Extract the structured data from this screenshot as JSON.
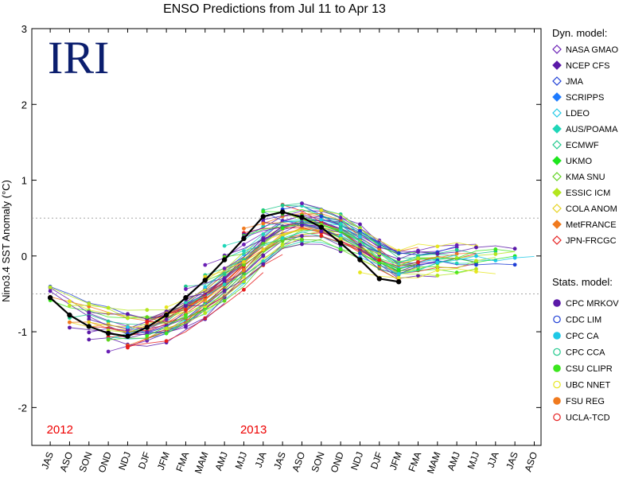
{
  "chart_data": {
    "type": "line",
    "title": "ENSO Predictions from Jul 11 to Apr 13",
    "logo_text": "IRI",
    "ylabel": "Nino3.4 SST Anomaly (°C)",
    "ylim": [
      -2.5,
      3
    ],
    "yticks": [
      -2,
      -1,
      0,
      1,
      2,
      3
    ],
    "reference_lines": [
      0.5,
      -0.5
    ],
    "x": [
      "JAS",
      "ASO",
      "SON",
      "OND",
      "NDJ",
      "DJF",
      "JFM",
      "FMA",
      "MAM",
      "AMJ",
      "MJJ",
      "JJA",
      "JAS",
      "ASO",
      "SON",
      "OND",
      "NDJ",
      "DJF",
      "JFM",
      "FMA",
      "MAM",
      "AMJ",
      "MJJ",
      "JJA",
      "JAS",
      "ASO"
    ],
    "year_labels": [
      {
        "text": "2012",
        "at": "JAS"
      },
      {
        "text": "2013",
        "at": "MJJ"
      }
    ],
    "observed": {
      "values": [
        -0.55,
        -0.78,
        -0.93,
        -1.02,
        -1.06,
        -0.94,
        -0.78,
        -0.55,
        -0.32,
        -0.05,
        0.23,
        0.52,
        0.58,
        0.51,
        0.38,
        0.17,
        -0.05,
        -0.3,
        -0.34
      ]
    },
    "legend": {
      "dynamical_header": "Dyn. model:",
      "statistical_header": "Stats. model:",
      "dynamical": [
        {
          "name": "NASA GMAO",
          "color": "#6a1fb5",
          "marker": "diamond-open"
        },
        {
          "name": "NCEP CFS",
          "color": "#5b19a8",
          "marker": "diamond-filled"
        },
        {
          "name": "JMA",
          "color": "#1f3fd6",
          "marker": "diamond-open"
        },
        {
          "name": "SCRIPPS",
          "color": "#1e7bff",
          "marker": "diamond-filled"
        },
        {
          "name": "LDEO",
          "color": "#1fc8e6",
          "marker": "diamond-open"
        },
        {
          "name": "AUS/POAMA",
          "color": "#1fd6b8",
          "marker": "diamond-filled"
        },
        {
          "name": "ECMWF",
          "color": "#1ec88c",
          "marker": "diamond-open"
        },
        {
          "name": "UKMO",
          "color": "#1ee61e",
          "marker": "diamond-filled"
        },
        {
          "name": "KMA SNU",
          "color": "#5fd21e",
          "marker": "diamond-open"
        },
        {
          "name": "ESSIC ICM",
          "color": "#b4e61e",
          "marker": "diamond-filled"
        },
        {
          "name": "COLA ANOM",
          "color": "#e6d21e",
          "marker": "diamond-open"
        },
        {
          "name": "MetFRANCE",
          "color": "#f07a1e",
          "marker": "diamond-filled"
        },
        {
          "name": "JPN-FRCGC",
          "color": "#e61e1e",
          "marker": "diamond-open"
        }
      ],
      "statistical": [
        {
          "name": "CPC MRKOV",
          "color": "#5b19a8",
          "marker": "circle-filled"
        },
        {
          "name": "CDC LIM",
          "color": "#1f3fd6",
          "marker": "circle-open"
        },
        {
          "name": "CPC CA",
          "color": "#1fc8e6",
          "marker": "circle-filled"
        },
        {
          "name": "CPC CCA",
          "color": "#1ec88c",
          "marker": "circle-open"
        },
        {
          "name": "CSU CLIPR",
          "color": "#3ce61e",
          "marker": "circle-filled"
        },
        {
          "name": "UBC NNET",
          "color": "#e6e61e",
          "marker": "circle-open"
        },
        {
          "name": "FSU REG",
          "color": "#f07a1e",
          "marker": "circle-filled"
        },
        {
          "name": "UCLA-TCD",
          "color": "#e61e1e",
          "marker": "circle-open"
        }
      ]
    }
  }
}
